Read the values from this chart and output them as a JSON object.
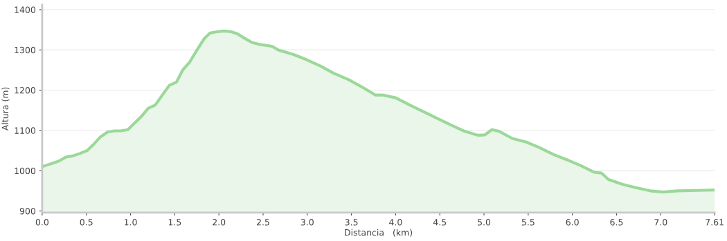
{
  "chart_data": {
    "type": "area",
    "xlabel": "Distancia   (km)",
    "ylabel": "Altura (m)",
    "x": [
      0,
      0.19,
      0.27,
      0.35,
      0.43,
      0.51,
      0.58,
      0.66,
      0.74,
      0.82,
      0.89,
      0.97,
      1.05,
      1.12,
      1.2,
      1.28,
      1.36,
      1.44,
      1.52,
      1.59,
      1.67,
      1.75,
      1.83,
      1.9,
      1.98,
      2.06,
      2.14,
      2.21,
      2.29,
      2.37,
      2.45,
      2.6,
      2.68,
      2.84,
      2.99,
      3.15,
      3.3,
      3.46,
      3.61,
      3.77,
      3.85,
      4.0,
      4.16,
      4.31,
      4.47,
      4.62,
      4.78,
      4.93,
      5.01,
      5.09,
      5.17,
      5.32,
      5.48,
      5.63,
      5.79,
      5.94,
      6.1,
      6.25,
      6.33,
      6.41,
      6.57,
      6.72,
      6.88,
      7.03,
      7.19,
      7.61
    ],
    "series": [
      {
        "color": "#9bd899",
        "values": [
          1010,
          1024,
          1034,
          1037,
          1043,
          1050,
          1065,
          1084,
          1096,
          1099,
          1099,
          1102,
          1119,
          1134,
          1155,
          1163,
          1188,
          1212,
          1220,
          1250,
          1270,
          1299,
          1327,
          1342,
          1345,
          1347,
          1345,
          1340,
          1329,
          1319,
          1314,
          1309,
          1299,
          1289,
          1276,
          1260,
          1242,
          1227,
          1209,
          1188,
          1188,
          1181,
          1163,
          1147,
          1130,
          1114,
          1098,
          1088,
          1089,
          1102,
          1098,
          1080,
          1071,
          1057,
          1040,
          1027,
          1012,
          996,
          994,
          978,
          966,
          958,
          950,
          947,
          950,
          952
        ]
      }
    ],
    "xlim": [
      0,
      7.61
    ],
    "ylim": [
      896,
      1412
    ],
    "xticks": [
      {
        "value": 0,
        "label": "0.0"
      },
      0.5,
      {
        "value": 1,
        "label": "1.0"
      },
      1.5,
      {
        "value": 2,
        "label": "2.0"
      },
      2.5,
      {
        "value": 3,
        "label": "3.0"
      },
      3.5,
      {
        "value": 4,
        "label": "4.0"
      },
      4.5,
      {
        "value": 5,
        "label": "5.0"
      },
      5.5,
      {
        "value": 6,
        "label": "6.0"
      },
      6.5,
      {
        "value": 7,
        "label": "7.0"
      },
      7.61
    ],
    "yticks": [
      900,
      1000,
      1100,
      1200,
      1300,
      1400
    ],
    "grid": "y",
    "legend": false
  }
}
